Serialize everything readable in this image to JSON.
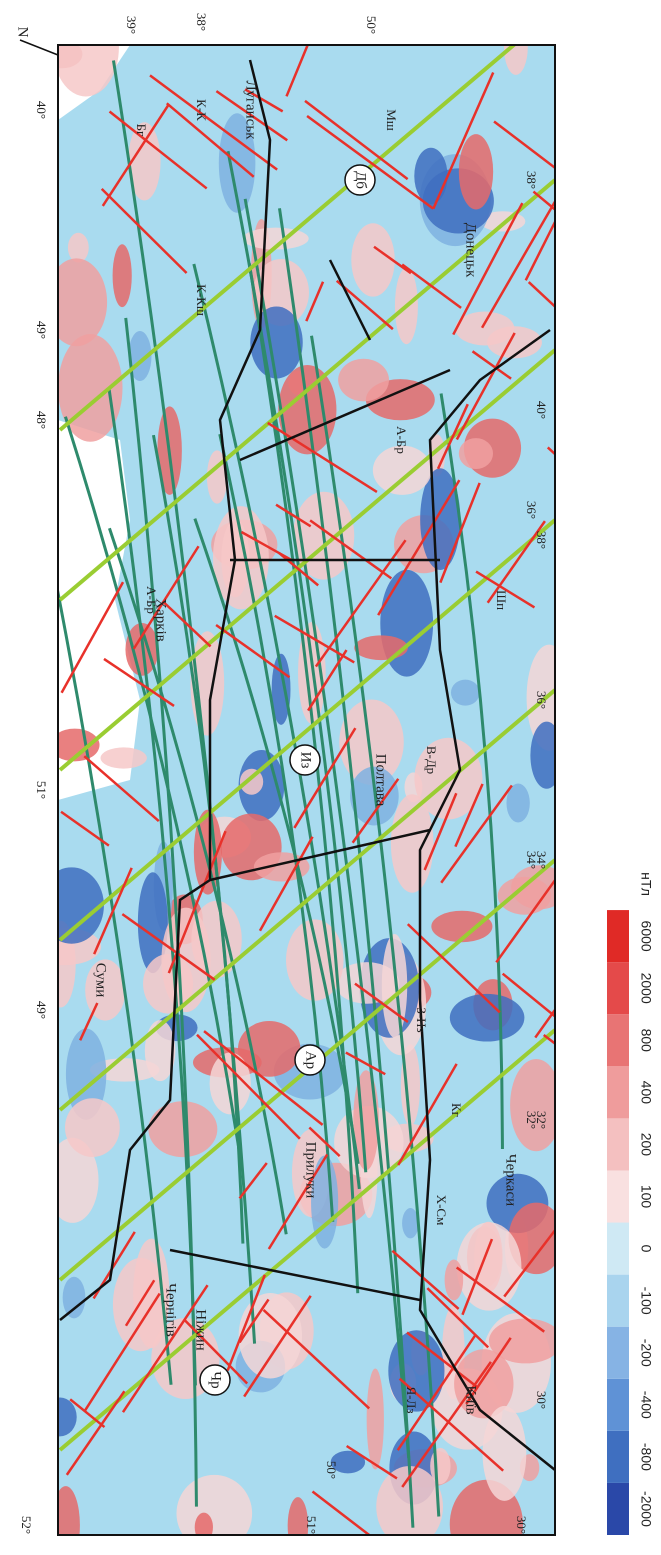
{
  "map": {
    "north": "N",
    "degree_labels": [
      "40°",
      "39°",
      "38°",
      "50°",
      "49°",
      "48°",
      "38°",
      "36°",
      "51°",
      "34°",
      "32°",
      "52°",
      "51°",
      "50°",
      "40°",
      "38°",
      "36°",
      "34°",
      "32°",
      "30°",
      "30°",
      "49°"
    ],
    "places": [
      "Київ",
      "Черкаси",
      "Полтава",
      "Харків",
      "Суми",
      "Чернігів",
      "Прилуки",
      "Ніжин",
      "Луганськ",
      "Донецьк"
    ],
    "zones": [
      "Чр",
      "Ар",
      "Из",
      "Дб"
    ],
    "faults": [
      "А-Бр",
      "А-Бр",
      "В-Др",
      "К-Кш",
      "Кг",
      "Х-См",
      "З-Нз",
      "Я-Лз",
      "Мш",
      "К-К",
      "Шп",
      "Бг"
    ]
  },
  "legend": {
    "ticks": [
      -2000,
      -800,
      -400,
      -200,
      -100,
      0,
      100,
      200,
      400,
      800,
      2000,
      6000
    ],
    "unit": "нТл"
  }
}
